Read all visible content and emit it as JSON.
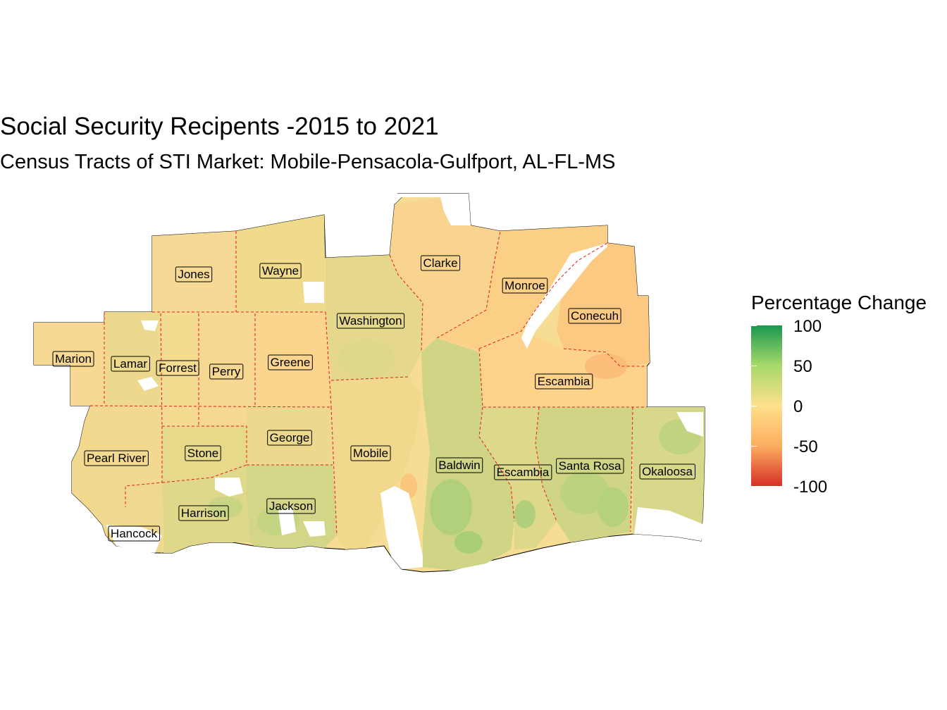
{
  "title": "Social Security Recipents -2015 to 2021",
  "subtitle": "Census Tracts of STI Market: Mobile-Pensacola-Gulfport, AL-FL-MS",
  "legend": {
    "title": "Percentage Change",
    "ticks": [
      "100",
      "50",
      "0",
      "-50",
      "-100"
    ],
    "colors": {
      "high": "#1a9850",
      "mid_high": "#a6d96a",
      "mid": "#fee08b",
      "mid_low": "#fdae61",
      "low": "#d73027"
    }
  },
  "map": {
    "border_color": "#e41a1c",
    "outline_color": "#000000",
    "counties": [
      {
        "label": "Jones",
        "value": 12
      },
      {
        "label": "Wayne",
        "value": 14
      },
      {
        "label": "Clarke",
        "value": 3
      },
      {
        "label": "Monroe",
        "value": -5
      },
      {
        "label": "Conecuh",
        "value": -8
      },
      {
        "label": "Washington",
        "value": 15
      },
      {
        "label": "Marion",
        "value": 5
      },
      {
        "label": "Lamar",
        "value": 18
      },
      {
        "label": "Forrest",
        "value": 10
      },
      {
        "label": "Perry",
        "value": 6
      },
      {
        "label": "Greene",
        "value": 2
      },
      {
        "label": "Escambia",
        "value": -3
      },
      {
        "label": "Pearl River",
        "value": 12
      },
      {
        "label": "Stone",
        "value": 20
      },
      {
        "label": "George",
        "value": 14
      },
      {
        "label": "Mobile",
        "value": 10
      },
      {
        "label": "Baldwin",
        "value": 28
      },
      {
        "label": "Escambia",
        "value": 16
      },
      {
        "label": "Santa Rosa",
        "value": 26
      },
      {
        "label": "Okaloosa",
        "value": 24
      },
      {
        "label": "Harrison",
        "value": 22
      },
      {
        "label": "Jackson",
        "value": 26
      },
      {
        "label": "Hancock",
        "value": 8
      }
    ]
  }
}
